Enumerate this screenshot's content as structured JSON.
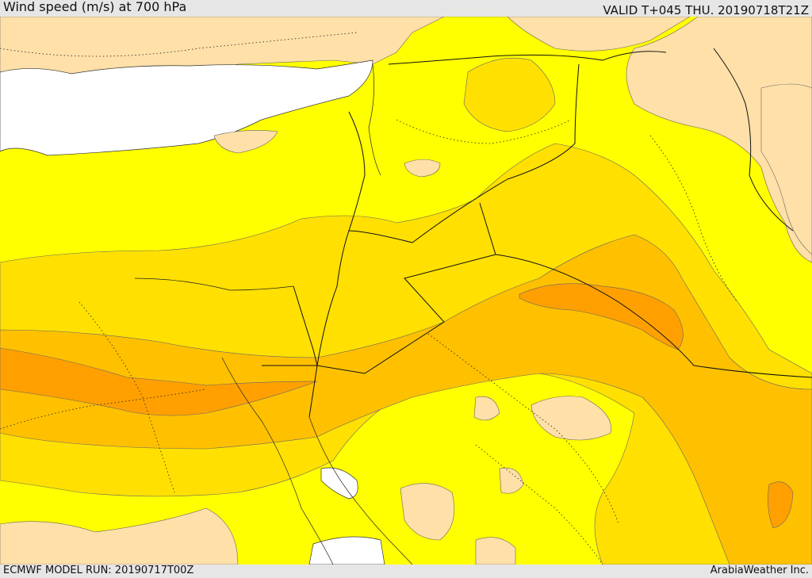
{
  "header": {
    "title": "Wind speed (m/s) at 700 hPa",
    "valid": "VALID T+045 THU. 20190718T21Z"
  },
  "footer": {
    "model_run": "ECMWF MODEL RUN: 20190717T00Z",
    "credit": "ArabiaWeather Inc."
  },
  "colors": {
    "land_low": "#ffe0a8",
    "band_1": "#ffff00",
    "band_2": "#ffe000",
    "band_3": "#ffc000",
    "band_4": "#ffa000",
    "sea": "#ffffff",
    "contour": "#555555",
    "border": "#111111"
  }
}
